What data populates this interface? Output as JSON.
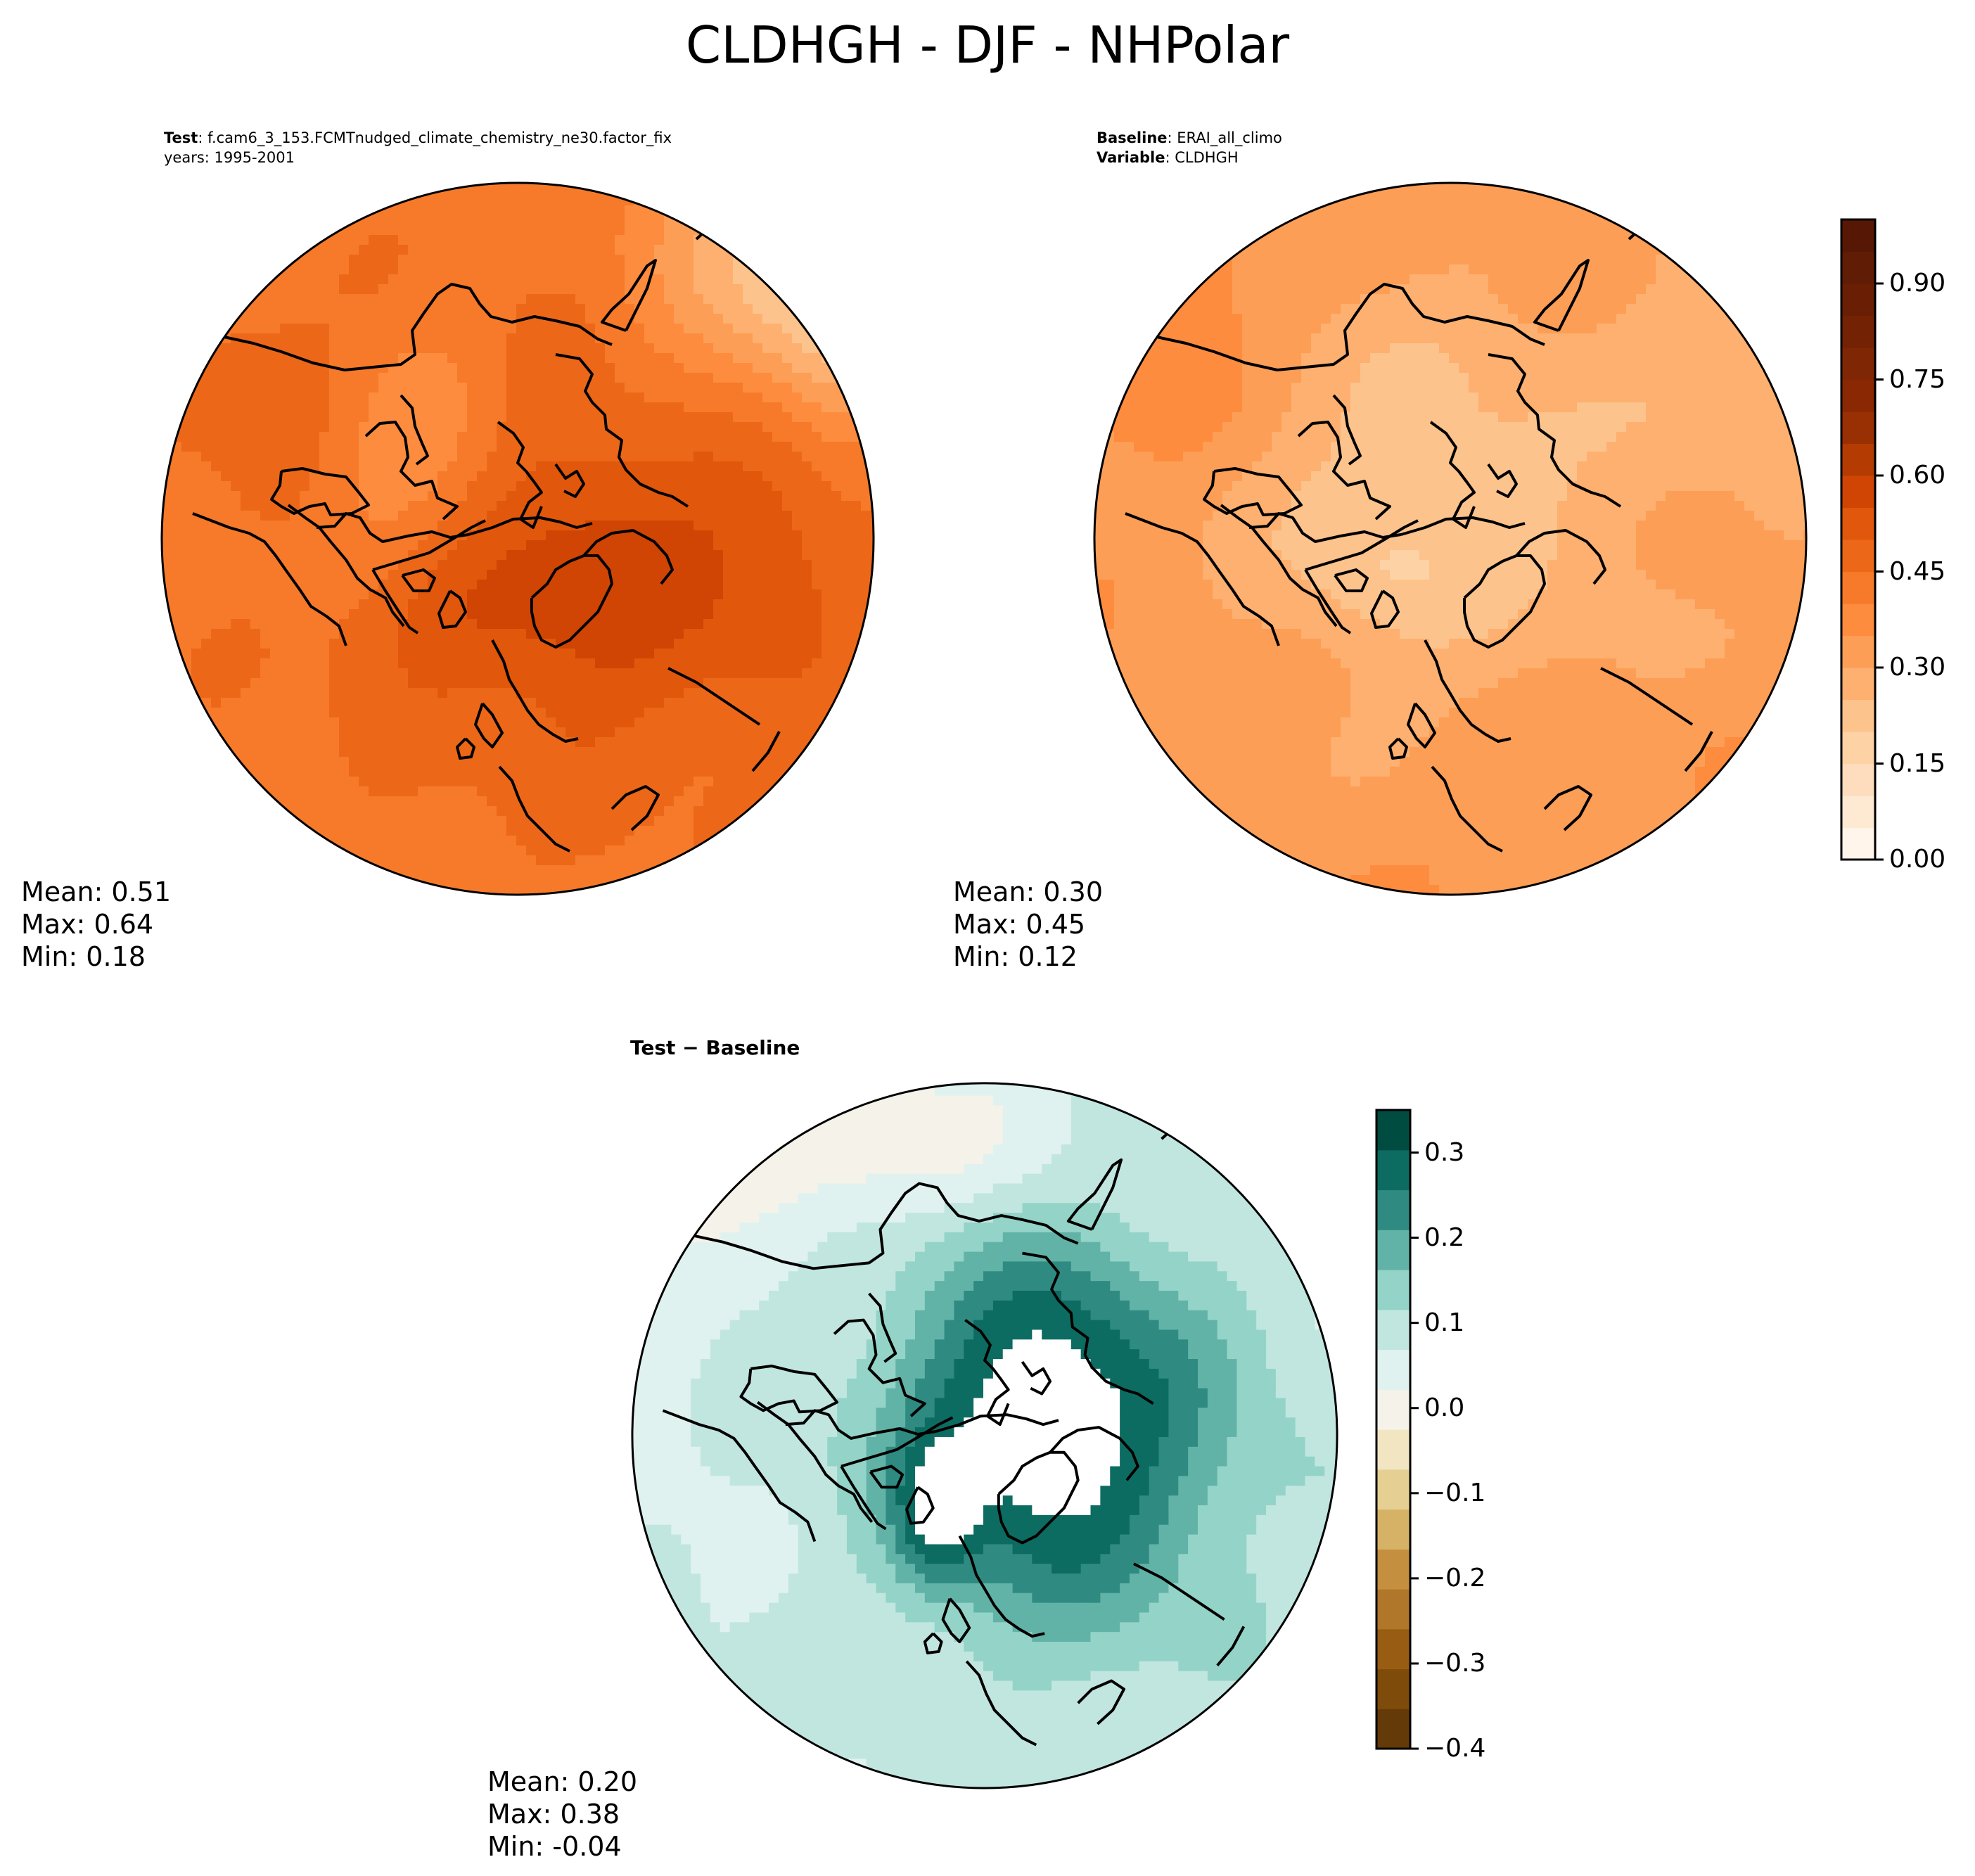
{
  "figure": {
    "title": "CLDHGH - DJF - NHPolar"
  },
  "panels": [
    {
      "id": "test",
      "header": [
        {
          "bold": "Test",
          "sep": ": ",
          "text": "f.cam6_3_153.FCMTnudged_climate_chemistry_ne30.factor_fix"
        },
        {
          "bold": "",
          "sep": "",
          "text": "years: 1995-2001"
        }
      ],
      "stats": {
        "mean": "Mean:  0.51",
        "max": "Max:  0.64",
        "min": "Min:  0.18"
      },
      "field_range": [
        0.18,
        0.64
      ],
      "mean_value": 0.51
    },
    {
      "id": "baseline",
      "header": [
        {
          "bold": "Baseline",
          "sep": ": ",
          "text": "ERAI_all_climo"
        },
        {
          "bold": "Variable",
          "sep": ": ",
          "text": "CLDHGH"
        }
      ],
      "stats": {
        "mean": "Mean:  0.30",
        "max": "Max:  0.45",
        "min": "Min:  0.12"
      },
      "field_range": [
        0.12,
        0.45
      ],
      "mean_value": 0.3
    },
    {
      "id": "diff",
      "header": [
        {
          "bold": "Test − Baseline",
          "sep": "",
          "text": ""
        }
      ],
      "stats": {
        "mean": "Mean:  0.20",
        "max": "Max:  0.38",
        "min": "Min: -0.04"
      },
      "field_range": [
        -0.04,
        0.38
      ],
      "mean_value": 0.2
    }
  ],
  "colorbars": {
    "main": {
      "name": "Oranges",
      "range": [
        0.0,
        1.0
      ],
      "n_levels": 20,
      "ticks": [
        0.0,
        0.15,
        0.3,
        0.45,
        0.6,
        0.75,
        0.9
      ],
      "tick_labels": [
        "0.00",
        "0.15",
        "0.30",
        "0.45",
        "0.60",
        "0.75",
        "0.90"
      ],
      "colors": [
        "#fff5eb",
        "#fee9d3",
        "#fdddbd",
        "#fdd2a5",
        "#fdc38c",
        "#fdb06f",
        "#fd9e56",
        "#fd8c3e",
        "#f67a29",
        "#ec6818",
        "#e1570c",
        "#d04504",
        "#b43c03",
        "#993003",
        "#8a2803",
        "#7f2704",
        "#742204",
        "#6a1f04",
        "#601c04",
        "#561804"
      ]
    },
    "diff": {
      "name": "BrBG",
      "range": [
        -0.4,
        0.35
      ],
      "ticks": [
        -0.4,
        -0.3,
        -0.2,
        -0.1,
        0.0,
        0.1,
        0.2,
        0.3
      ],
      "tick_labels": [
        "−0.4",
        "−0.3",
        "−0.2",
        "−0.1",
        "0.0",
        "0.1",
        "0.2",
        "0.3"
      ],
      "levels": [
        -0.4,
        -0.35,
        -0.3,
        -0.25,
        -0.2,
        -0.15,
        -0.1,
        -0.05,
        0.0,
        0.05,
        0.1,
        0.15,
        0.2,
        0.25,
        0.3,
        0.35
      ],
      "colors": [
        "#643a08",
        "#7e4b0a",
        "#985d13",
        "#b0772a",
        "#c48f3f",
        "#d6b266",
        "#e6cf92",
        "#f2e6c2",
        "#f5f2e9",
        "#e0f2ef",
        "#c1e6e0",
        "#94d4c8",
        "#62b3a7",
        "#2f8b82",
        "#0d6c61",
        "#014c40"
      ]
    }
  }
}
